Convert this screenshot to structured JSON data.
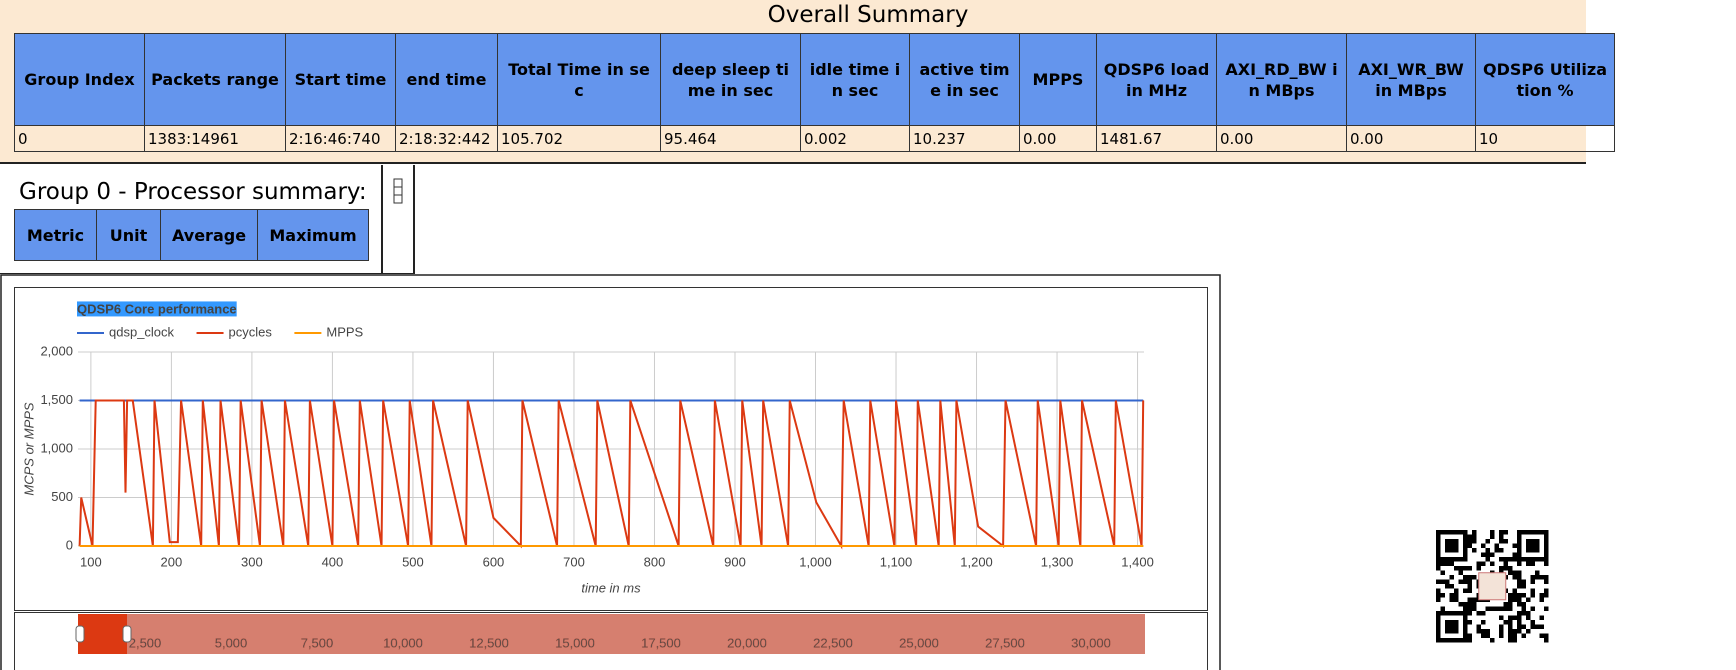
{
  "overall_summary": {
    "title": "Overall Summary",
    "headers": [
      "Group Index",
      "Packets range",
      "Start time",
      "end time",
      "Total Time in sec",
      "deep sleep time in sec",
      "idle time in sec",
      "active time in sec",
      "MPPS",
      "QDSP6 load in MHz",
      "AXI_RD_BW in MBps",
      "AXI_WR_BW in MBps",
      "QDSP6 Utilization %"
    ],
    "rows": [
      [
        "0",
        "1383:14961",
        "2:16:46:740",
        "2:18:32:442",
        "105.702",
        "95.464",
        "0.002",
        "10.237",
        "0.00",
        "1481.67",
        "0.00",
        "0.00",
        "10"
      ]
    ]
  },
  "group_summary": {
    "title": "Group 0 - Processor summary:",
    "headers": [
      "Metric",
      "Unit",
      "Average",
      "Maximum"
    ]
  },
  "chart_data": {
    "type": "line",
    "title": "QDSP6 Core performance",
    "x_label": "time in ms",
    "y_label": "MCPS or MPPS",
    "xlim": [
      84,
      1408
    ],
    "ylim": [
      0,
      2000
    ],
    "xticks": [
      100,
      200,
      300,
      400,
      500,
      600,
      700,
      800,
      900,
      {
        "value": 1000,
        "label": "1,000"
      },
      {
        "value": 1100,
        "label": "1,100"
      },
      {
        "value": 1200,
        "label": "1,200"
      },
      {
        "value": 1300,
        "label": "1,300"
      },
      {
        "value": 1400,
        "label": "1,400"
      }
    ],
    "yticks": [
      0,
      500,
      {
        "value": 1000,
        "label": "1,000"
      },
      {
        "value": 1500,
        "label": "1,500"
      },
      {
        "value": 2000,
        "label": "2,000"
      }
    ],
    "grid": true,
    "legend": "top",
    "series": [
      {
        "name": "qdsp_clock",
        "color": "#3366cc",
        "x": [
          86,
          1407
        ],
        "values": [
          1500,
          1500
        ]
      },
      {
        "name": "pcycles",
        "color": "#dc3912",
        "x": [
          86,
          88,
          102,
          106,
          141,
          143,
          145,
          152,
          177,
          179,
          198,
          208,
          212,
          237,
          239,
          259,
          261,
          284,
          286,
          310,
          312,
          339,
          341,
          370,
          372,
          400,
          402,
          432,
          434,
          461,
          463,
          494,
          496,
          523,
          525,
          566,
          568,
          600,
          634,
          636,
          679,
          681,
          727,
          729,
          768,
          770,
          830,
          832,
          873,
          875,
          907,
          909,
          933,
          935,
          966,
          968,
          1001,
          1032,
          1035,
          1066,
          1068,
          1098,
          1100,
          1125,
          1127,
          1153,
          1155,
          1173,
          1175,
          1202,
          1233,
          1236,
          1274,
          1276,
          1302,
          1304,
          1329,
          1331,
          1371,
          1373,
          1405,
          1407
        ],
        "values": [
          0,
          500,
          0,
          1500,
          1500,
          550,
          1500,
          1500,
          0,
          1500,
          40,
          40,
          1500,
          0,
          1500,
          0,
          1500,
          0,
          1500,
          0,
          1500,
          0,
          1500,
          0,
          1500,
          0,
          1500,
          0,
          1500,
          0,
          1500,
          0,
          1500,
          0,
          1500,
          0,
          1500,
          290,
          0,
          1500,
          0,
          1500,
          0,
          1500,
          0,
          1500,
          0,
          1500,
          0,
          1500,
          0,
          1500,
          0,
          1500,
          0,
          1500,
          450,
          0,
          1500,
          0,
          1500,
          0,
          1500,
          0,
          1500,
          0,
          1500,
          0,
          1500,
          200,
          0,
          1500,
          0,
          1500,
          0,
          1500,
          0,
          1500,
          0,
          1500,
          0,
          1500
        ]
      },
      {
        "name": "MPPS",
        "color": "#ff9900",
        "x": [
          86,
          1407
        ],
        "values": [
          0,
          0
        ]
      }
    ],
    "navigator": {
      "xlim": [
        552,
        31570
      ],
      "xticks": [
        {
          "value": 2500,
          "label": "2,500"
        },
        {
          "value": 5000,
          "label": "5,000"
        },
        {
          "value": 7500,
          "label": "7,500"
        },
        {
          "value": 10000,
          "label": "10,000"
        },
        {
          "value": 12500,
          "label": "12,500"
        },
        {
          "value": 15000,
          "label": "15,000"
        },
        {
          "value": 17500,
          "label": "17,500"
        },
        {
          "value": 20000,
          "label": "20,000"
        },
        {
          "value": 22500,
          "label": "22,500"
        },
        {
          "value": 25000,
          "label": "25,000"
        },
        {
          "value": 27500,
          "label": "27,500"
        },
        {
          "value": 30000,
          "label": "30,000"
        }
      ]
    }
  }
}
